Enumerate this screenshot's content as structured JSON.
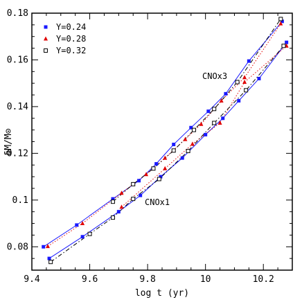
{
  "chart_data": {
    "type": "line",
    "title": "",
    "xlabel": "log t (yr)",
    "ylabel": "δM/M⊙",
    "xlim": [
      9.4,
      10.3
    ],
    "ylim": [
      0.07,
      0.18
    ],
    "xticks": [
      "9.4",
      "9.6",
      "9.8",
      "10",
      "10.2"
    ],
    "yticks": [
      "0.08",
      "0.1",
      "0.12",
      "0.14",
      "0.16",
      "0.18"
    ],
    "grid": false,
    "legend_position": "top-left",
    "series_style": [
      {
        "name": "Y=0.24",
        "color": "#1a1aff",
        "marker": "square-filled",
        "line": "solid"
      },
      {
        "name": "Y=0.28",
        "color": "#e00000",
        "marker": "triangle-filled",
        "line": "dotted"
      },
      {
        "name": "Y=0.32",
        "color": "#000000",
        "marker": "square-open",
        "line": "dashdot"
      }
    ],
    "annotations": [
      "CNOx3",
      "CNOx1"
    ],
    "series": [
      {
        "name": "Y=0.24",
        "group": "CNOx3",
        "x": [
          9.44,
          9.555,
          9.68,
          9.77,
          9.83,
          9.89,
          9.95,
          10.01,
          10.07,
          10.15,
          10.265
        ],
        "y": [
          0.08,
          0.0893,
          0.1005,
          0.1083,
          0.1155,
          0.1238,
          0.131,
          0.138,
          0.1455,
          0.1595,
          0.1765
        ]
      },
      {
        "name": "Y=0.28",
        "group": "CNOx3",
        "x": [
          9.455,
          9.575,
          9.71,
          9.795,
          9.86,
          9.93,
          9.985,
          10.055,
          10.135,
          10.26
        ],
        "y": [
          0.0802,
          0.09,
          0.103,
          0.111,
          0.118,
          0.126,
          0.1325,
          0.1425,
          0.1525,
          0.1755
        ]
      },
      {
        "name": "Y=0.32",
        "group": "CNOx3",
        "x": [
          9.68,
          9.75,
          9.82,
          9.89,
          9.96,
          10.03,
          10.11,
          10.26
        ],
        "y": [
          0.0993,
          0.1068,
          0.1135,
          0.1212,
          0.13,
          0.139,
          0.1505,
          0.1775
        ]
      },
      {
        "name": "Y=0.24",
        "group": "CNOx1",
        "x": [
          9.46,
          9.575,
          9.7,
          9.775,
          9.845,
          9.92,
          10.0,
          10.06,
          10.115,
          10.185,
          10.28
        ],
        "y": [
          0.075,
          0.0843,
          0.095,
          0.102,
          0.11,
          0.118,
          0.128,
          0.135,
          0.1425,
          0.152,
          0.1675
        ]
      },
      {
        "name": "Y=0.28",
        "group": "CNOx1",
        "x": [
          9.71,
          9.86,
          9.955,
          10.05,
          10.135,
          10.28
        ],
        "y": [
          0.097,
          0.1135,
          0.124,
          0.133,
          0.1505,
          0.166
        ]
      },
      {
        "name": "Y=0.32",
        "group": "CNOx1",
        "x": [
          9.465,
          9.6,
          9.68,
          9.75,
          9.84,
          9.94,
          10.03,
          10.14,
          10.27
        ],
        "y": [
          0.0735,
          0.0855,
          0.0925,
          0.1005,
          0.109,
          0.121,
          0.133,
          0.147,
          0.166
        ]
      }
    ]
  }
}
